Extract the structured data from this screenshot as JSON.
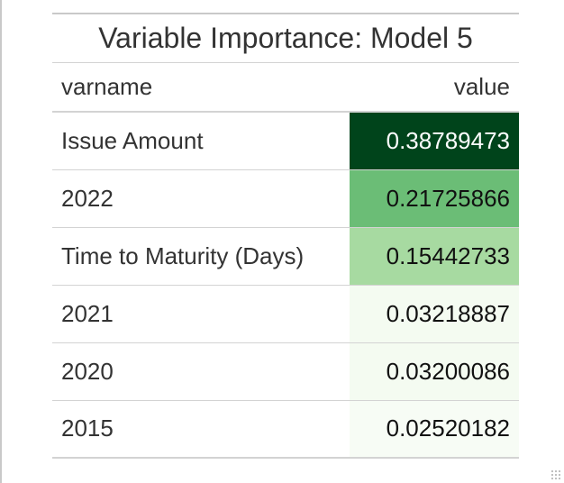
{
  "table": {
    "title": "Variable Importance: Model 5",
    "columns": {
      "varname": "varname",
      "value": "value"
    },
    "rows": [
      {
        "varname": "Issue Amount",
        "value": "0.38789473",
        "bg": "#00441b",
        "fg": "#ffffff"
      },
      {
        "varname": "2022",
        "value": "0.21725866",
        "bg": "#6bbd76",
        "fg": "#111111"
      },
      {
        "varname": "Time to Maturity (Days)",
        "value": "0.15442733",
        "bg": "#a7daa1",
        "fg": "#111111"
      },
      {
        "varname": "2021",
        "value": "0.03218887",
        "bg": "#f4fbf1",
        "fg": "#111111"
      },
      {
        "varname": "2020",
        "value": "0.03200086",
        "bg": "#f4fbf1",
        "fg": "#111111"
      },
      {
        "varname": "2015",
        "value": "0.02520182",
        "bg": "#f7fcf5",
        "fg": "#111111"
      }
    ]
  }
}
